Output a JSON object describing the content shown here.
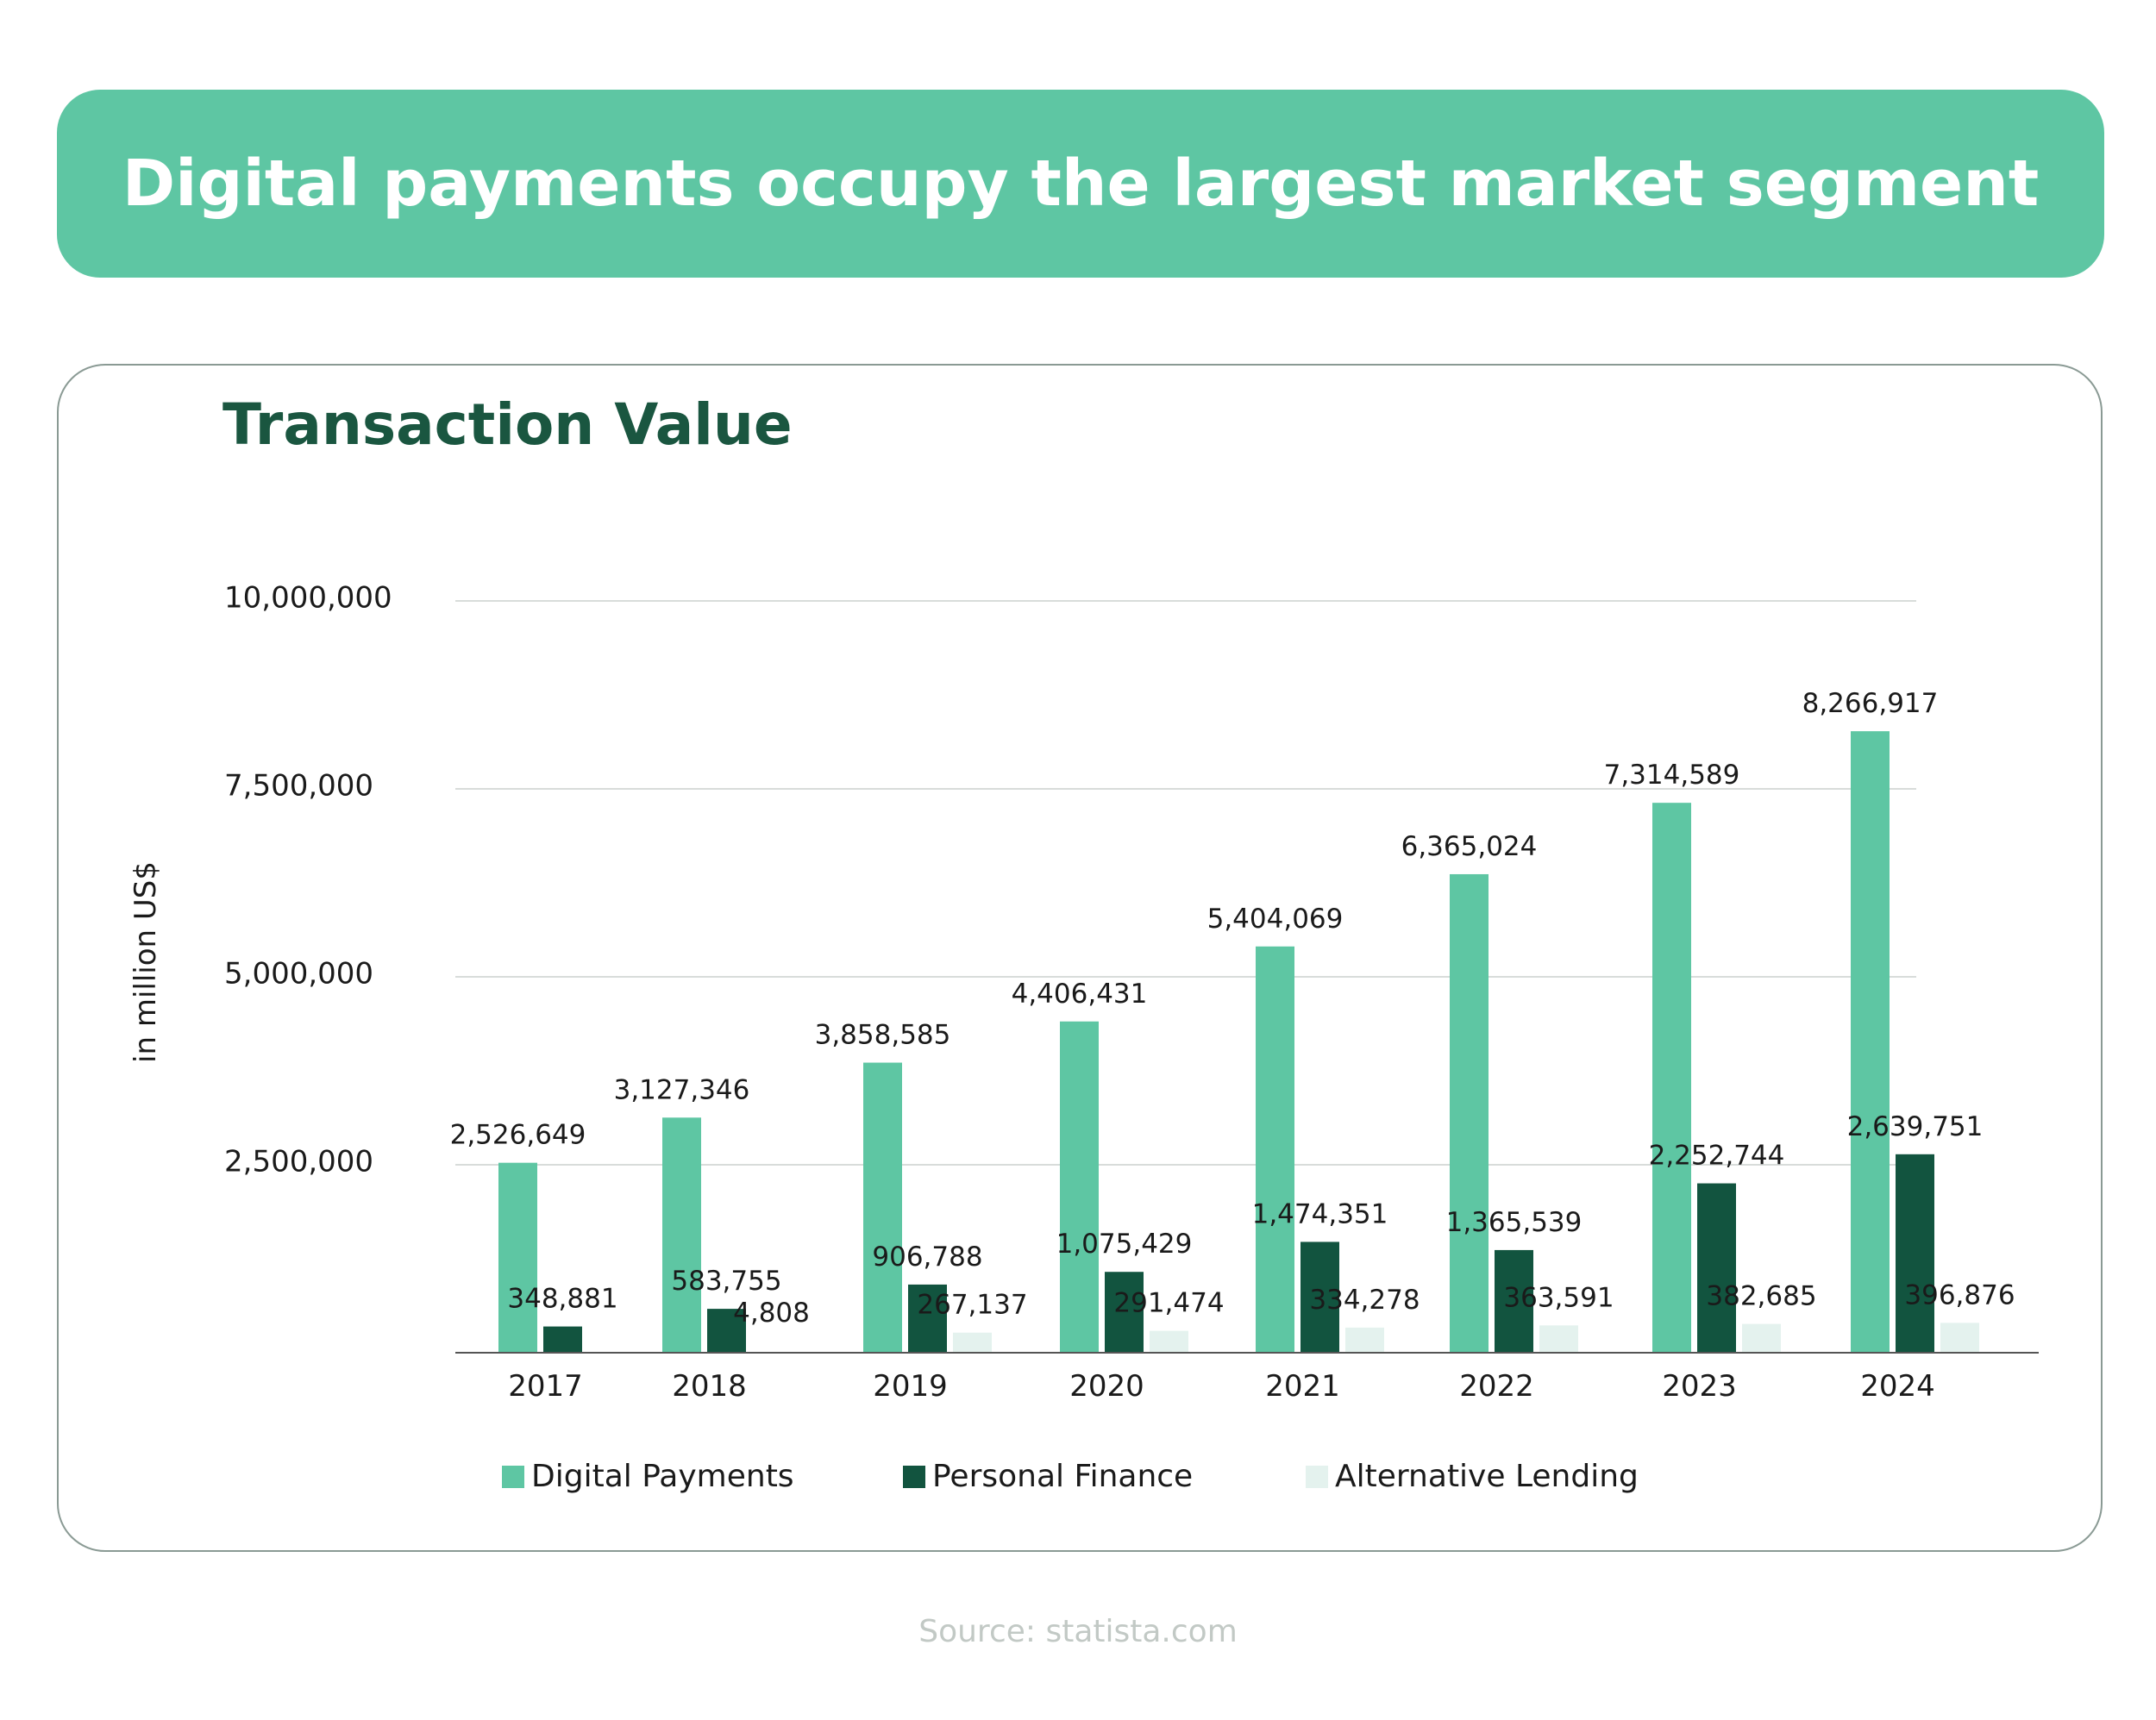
{
  "header": {
    "title": "Digital payments occupy the largest market segment"
  },
  "card": {
    "title": "Transaction Value"
  },
  "source": "Source: statista.com",
  "colors": {
    "digital_payments": "#5ec6a3",
    "personal_finance": "#12543f",
    "alternative_lending": "#e4f2ee",
    "grid": "#d8dcda",
    "axis": "#555555",
    "text": "#1a1a1a"
  },
  "chart_data": {
    "type": "bar",
    "title": "Transaction Value",
    "xlabel": "",
    "ylabel": "in million US$",
    "ylim": [
      0,
      10000000
    ],
    "yticks": [
      {
        "value": 2500000,
        "label": "2,500,000"
      },
      {
        "value": 5000000,
        "label": "5,000,000"
      },
      {
        "value": 7500000,
        "label": "7,500,000"
      },
      {
        "value": 10000000,
        "label": "10,000,000"
      }
    ],
    "grid": true,
    "legend_position": "bottom",
    "categories": [
      "2017",
      "2018",
      "2019",
      "2020",
      "2021",
      "2022",
      "2023",
      "2024"
    ],
    "series": [
      {
        "name": "Digital Payments",
        "values": [
          2526649,
          3127346,
          3858585,
          4406431,
          5404069,
          6365024,
          7314589,
          8266917
        ],
        "labels": [
          "2,526,649",
          "3,127,346",
          "3,858,585",
          "4,406,431",
          "5,404,069",
          "6,365,024",
          "7,314,589",
          "8,266,917"
        ]
      },
      {
        "name": "Personal Finance",
        "values": [
          348881,
          583755,
          906788,
          1075429,
          1474351,
          1365539,
          2252744,
          2639751
        ],
        "labels": [
          "348,881",
          "583,755",
          "906,788",
          "1,075,429",
          "1,474,351",
          "1,365,539",
          "2,252,744",
          "2,639,751"
        ]
      },
      {
        "name": "Alternative Lending",
        "values": [
          null,
          4808,
          267137,
          291474,
          334278,
          363591,
          382685,
          396876
        ],
        "labels": [
          "",
          "4,808",
          "267,137",
          "291,474",
          "334,278",
          "363,591",
          "382,685",
          "396,876"
        ]
      }
    ]
  }
}
